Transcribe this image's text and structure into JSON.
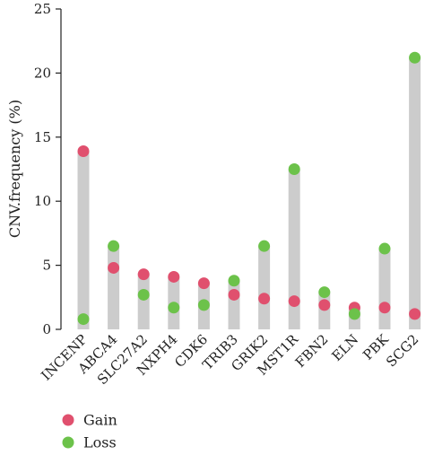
{
  "chart_data": {
    "type": "dot",
    "title": "",
    "xlabel": "",
    "ylabel": "CNV.frequency (%)",
    "ylim": [
      0,
      25
    ],
    "yticks": [
      0,
      5,
      10,
      15,
      20,
      25
    ],
    "grid": false,
    "legend_position": "bottom-left",
    "categories": [
      "INCENP",
      "ABCA4",
      "SLC27A2",
      "NXPH4",
      "CDK6",
      "TRIB3",
      "GRIK2",
      "MST1R",
      "FBN2",
      "ELN",
      "PBK",
      "SCG2"
    ],
    "series": [
      {
        "name": "Gain",
        "color": "#e0506e",
        "values": [
          13.9,
          4.8,
          4.3,
          4.1,
          3.6,
          2.7,
          2.4,
          2.2,
          1.9,
          1.7,
          1.7,
          1.2
        ]
      },
      {
        "name": "Loss",
        "color": "#6cc24a",
        "values": [
          0.8,
          6.5,
          2.7,
          1.7,
          1.9,
          3.8,
          6.5,
          12.5,
          2.9,
          1.2,
          6.3,
          21.2
        ]
      }
    ],
    "bar_color": "#cccccc"
  }
}
